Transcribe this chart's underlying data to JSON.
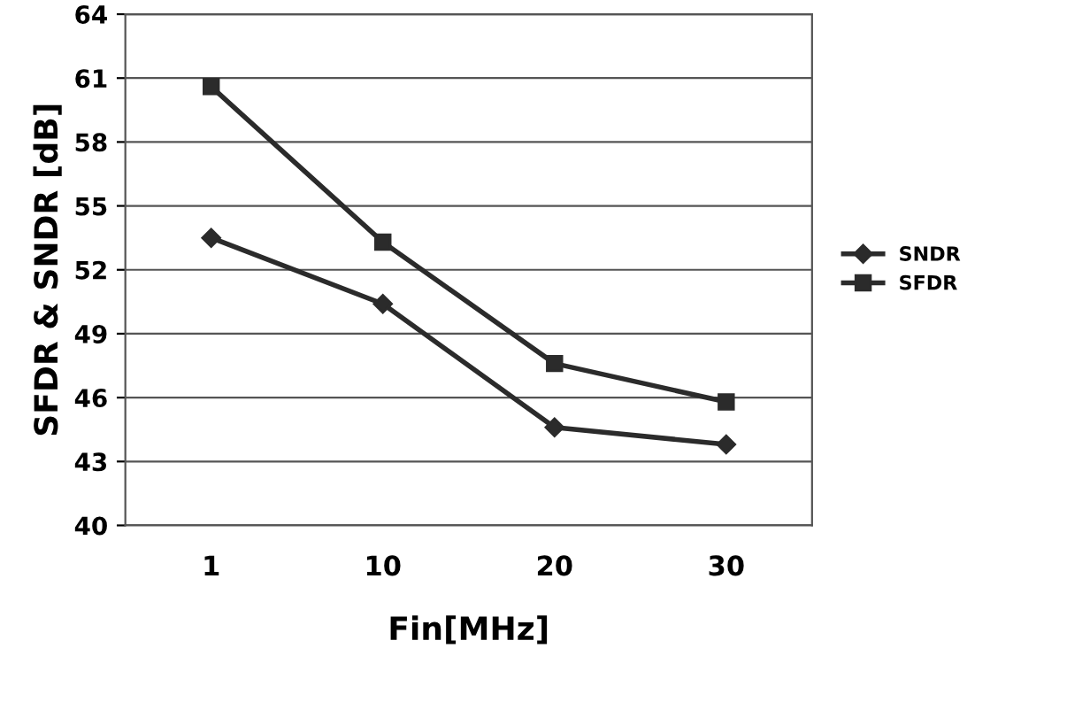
{
  "chart_data": {
    "type": "line",
    "xlabel": "Fin[MHz]",
    "ylabel": "SFDR & SNDR [dB]",
    "categories": [
      "1",
      "10",
      "20",
      "30"
    ],
    "series": [
      {
        "name": "SNDR",
        "color": "#2b2b2b",
        "marker": "diamond",
        "values": [
          53.5,
          50.4,
          44.6,
          43.8
        ]
      },
      {
        "name": "SFDR",
        "color": "#2b2b2b",
        "marker": "square",
        "values": [
          60.6,
          53.3,
          47.6,
          45.8
        ]
      }
    ],
    "ylim": [
      40,
      64
    ],
    "yticks": [
      40,
      43,
      46,
      49,
      52,
      55,
      58,
      61,
      64
    ],
    "grid": "y",
    "legend": "right",
    "line_style": "solid"
  }
}
